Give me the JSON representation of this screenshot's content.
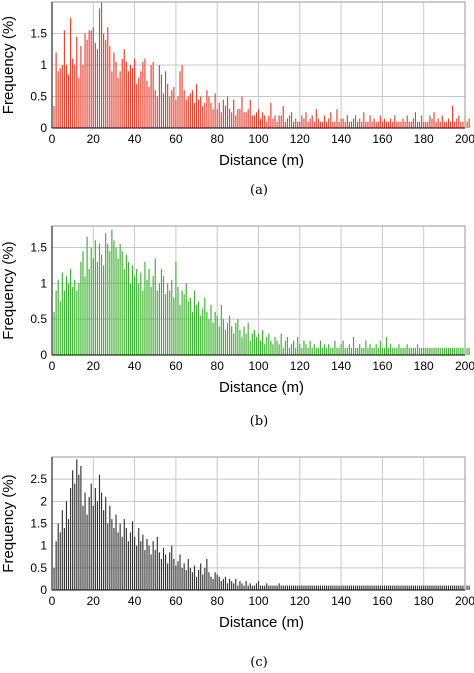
{
  "panels": [
    {
      "caption": "(a)",
      "colors": {
        "bars": "#e8402f"
      },
      "chart_data": {
        "type": "bar",
        "xlabel": "Distance (m)",
        "ylabel": "Frequency (%)",
        "xlim": [
          0,
          200
        ],
        "ylim": [
          0,
          2
        ],
        "xticks": [
          "0",
          "20",
          "40",
          "60",
          "80",
          "100",
          "120",
          "140",
          "160",
          "180",
          "200"
        ],
        "yticks": [
          "0",
          "0.5",
          "1",
          "1.5"
        ],
        "grid": true,
        "bin_width": 1,
        "x_start": 1,
        "values": [
          0.35,
          1.2,
          0.9,
          0.95,
          1.0,
          1.55,
          1.0,
          0.85,
          1.75,
          1.1,
          1.0,
          1.45,
          0.8,
          1.3,
          1.0,
          1.5,
          1.4,
          1.55,
          1.55,
          1.6,
          1.35,
          1.25,
          1.9,
          2.0,
          1.5,
          1.4,
          1.6,
          1.3,
          0.9,
          1.2,
          1.05,
          0.8,
          0.9,
          1.1,
          1.25,
          1.05,
          0.9,
          1.0,
          0.95,
          1.1,
          0.7,
          0.8,
          0.9,
          1.05,
          1.1,
          0.75,
          0.65,
          1.0,
          1.05,
          0.6,
          0.5,
          1.0,
          0.85,
          0.55,
          0.9,
          0.7,
          0.5,
          0.6,
          0.65,
          0.45,
          0.5,
          0.9,
          1.0,
          0.6,
          0.45,
          0.5,
          0.55,
          0.6,
          0.4,
          0.7,
          0.45,
          0.5,
          0.35,
          0.4,
          0.6,
          0.5,
          0.4,
          0.3,
          0.55,
          0.3,
          0.4,
          0.25,
          0.45,
          0.35,
          0.5,
          0.3,
          0.25,
          0.45,
          0.2,
          0.3,
          0.3,
          0.5,
          0.25,
          0.25,
          0.3,
          0.45,
          0.2,
          0.2,
          0.25,
          0.3,
          0.15,
          0.25,
          0.2,
          0.1,
          0.2,
          0.4,
          0.15,
          0.2,
          0.1,
          0.2,
          0.2,
          0.35,
          0.1,
          0.15,
          0.2,
          0.25,
          0.1,
          0.15,
          0.1,
          0.1,
          0.2,
          0.15,
          0.25,
          0.1,
          0.15,
          0.2,
          0.1,
          0.3,
          0.15,
          0.1,
          0.1,
          0.2,
          0.1,
          0.15,
          0.25,
          0.1,
          0.1,
          0.3,
          0.1,
          0.15,
          0.15,
          0.1,
          0.2,
          0.1,
          0.1,
          0.15,
          0.2,
          0.1,
          0.15,
          0.1,
          0.25,
          0.1,
          0.1,
          0.2,
          0.1,
          0.15,
          0.1,
          0.1,
          0.2,
          0.1,
          0.15,
          0.1,
          0.1,
          0.15,
          0.1,
          0.2,
          0.1,
          0.1,
          0.1,
          0.15,
          0.1,
          0.2,
          0.1,
          0.1,
          0.15,
          0.25,
          0.1,
          0.1,
          0.2,
          0.1,
          0.1,
          0.1,
          0.2,
          0.15,
          0.25,
          0.1,
          0.15,
          0.1,
          0.2,
          0.1,
          0.1,
          0.15,
          0.1,
          0.35,
          0.1,
          0.15,
          0.2,
          0.1,
          0.1,
          0.2,
          0.1,
          0.15
        ]
      }
    },
    {
      "caption": "(b)",
      "colors": {
        "bars": "#3cb02f"
      },
      "chart_data": {
        "type": "bar",
        "xlabel": "Distance (m)",
        "ylabel": "Frequency (%)",
        "xlim": [
          0,
          200
        ],
        "ylim": [
          0,
          1.8
        ],
        "xticks": [
          "0",
          "20",
          "40",
          "60",
          "80",
          "100",
          "120",
          "140",
          "160",
          "180",
          "200"
        ],
        "yticks": [
          "0",
          "0.5",
          "1",
          "1.5"
        ],
        "grid": true,
        "bin_width": 1,
        "x_start": 1,
        "values": [
          0.6,
          0.9,
          1.05,
          0.75,
          1.15,
          0.9,
          1.1,
          1.0,
          1.2,
          0.95,
          1.05,
          0.9,
          1.0,
          1.3,
          1.45,
          1.1,
          1.65,
          1.2,
          1.5,
          1.35,
          1.6,
          1.3,
          1.55,
          1.4,
          1.25,
          1.7,
          1.55,
          1.45,
          1.75,
          1.6,
          1.5,
          1.35,
          1.55,
          1.45,
          1.2,
          1.4,
          1.3,
          1.0,
          1.25,
          1.1,
          1.2,
          1.0,
          1.15,
          0.9,
          1.3,
          1.05,
          1.2,
          0.95,
          1.1,
          1.35,
          0.9,
          1.0,
          1.2,
          1.1,
          0.85,
          1.0,
          0.9,
          1.05,
          0.8,
          1.3,
          0.95,
          0.7,
          0.9,
          0.85,
          1.0,
          0.75,
          0.8,
          0.6,
          0.9,
          0.7,
          0.75,
          0.55,
          0.65,
          0.8,
          0.6,
          0.5,
          0.7,
          0.45,
          0.6,
          0.55,
          0.4,
          0.7,
          0.5,
          0.35,
          0.45,
          0.55,
          0.4,
          0.3,
          0.45,
          0.5,
          0.35,
          0.25,
          0.4,
          0.3,
          0.45,
          0.2,
          0.3,
          0.35,
          0.25,
          0.3,
          0.2,
          0.35,
          0.15,
          0.25,
          0.3,
          0.2,
          0.15,
          0.25,
          0.2,
          0.15,
          0.3,
          0.1,
          0.2,
          0.25,
          0.1,
          0.15,
          0.2,
          0.1,
          0.25,
          0.15,
          0.1,
          0.2,
          0.15,
          0.1,
          0.2,
          0.1,
          0.15,
          0.1,
          0.1,
          0.2,
          0.1,
          0.15,
          0.1,
          0.15,
          0.1,
          0.1,
          0.2,
          0.1,
          0.1,
          0.15,
          0.2,
          0.1,
          0.1,
          0.15,
          0.1,
          0.25,
          0.1,
          0.1,
          0.15,
          0.1,
          0.1,
          0.2,
          0.1,
          0.15,
          0.1,
          0.1,
          0.15,
          0.1,
          0.2,
          0.1,
          0.1,
          0.25,
          0.1,
          0.15,
          0.1,
          0.1,
          0.1,
          0.15,
          0.1,
          0.1,
          0.1,
          0.15,
          0.1,
          0.1,
          0.1,
          0.1,
          0.15,
          0.1,
          0.1,
          0.1,
          0.1,
          0.1,
          0.1,
          0.1,
          0.1,
          0.1,
          0.1,
          0.1,
          0.1,
          0.1,
          0.1,
          0.1,
          0.1,
          0.1,
          0.1,
          0.1,
          0.1,
          0.1,
          0.1,
          0.1,
          0.1,
          0.1
        ]
      }
    },
    {
      "caption": "(c)",
      "colors": {
        "bars": "#333333"
      },
      "chart_data": {
        "type": "bar",
        "xlabel": "Distance (m)",
        "ylabel": "Frequency (%)",
        "xlim": [
          0,
          200
        ],
        "ylim": [
          0,
          3
        ],
        "xticks": [
          "0",
          "20",
          "40",
          "60",
          "80",
          "100",
          "120",
          "140",
          "160",
          "180",
          "200"
        ],
        "yticks": [
          "0",
          "0.5",
          "1",
          "1.5",
          "2",
          "2.5"
        ],
        "grid": true,
        "bin_width": 1,
        "x_start": 1,
        "values": [
          0.5,
          1.1,
          1.5,
          1.3,
          1.8,
          1.4,
          2.0,
          1.6,
          2.3,
          2.7,
          2.4,
          2.95,
          2.6,
          2.8,
          1.9,
          2.2,
          1.7,
          2.1,
          2.4,
          1.9,
          2.3,
          2.0,
          2.6,
          2.2,
          1.8,
          2.1,
          1.5,
          1.9,
          1.6,
          1.4,
          1.7,
          1.3,
          1.5,
          1.2,
          1.6,
          1.4,
          1.1,
          1.3,
          1.55,
          1.2,
          1.0,
          1.4,
          1.1,
          1.25,
          0.9,
          1.15,
          1.0,
          0.8,
          1.1,
          0.9,
          1.2,
          0.85,
          0.7,
          0.95,
          0.8,
          0.6,
          0.85,
          1.0,
          0.7,
          0.55,
          0.65,
          0.8,
          0.5,
          0.6,
          0.45,
          0.7,
          0.5,
          0.4,
          0.55,
          0.3,
          0.45,
          0.6,
          0.35,
          0.5,
          0.7,
          0.4,
          0.3,
          0.25,
          0.4,
          0.35,
          0.3,
          0.2,
          0.25,
          0.3,
          0.15,
          0.25,
          0.2,
          0.15,
          0.25,
          0.1,
          0.2,
          0.15,
          0.1,
          0.2,
          0.1,
          0.15,
          0.1,
          0.1,
          0.15,
          0.2,
          0.1,
          0.1,
          0.1,
          0.15,
          0.1,
          0.1,
          0.1,
          0.1,
          0.1,
          0.15,
          0.1,
          0.1,
          0.1,
          0.1,
          0.1,
          0.1,
          0.1,
          0.1,
          0.1,
          0.1,
          0.1,
          0.1,
          0.1,
          0.1,
          0.1,
          0.1,
          0.1,
          0.1,
          0.1,
          0.1,
          0.1,
          0.1,
          0.1,
          0.1,
          0.1,
          0.1,
          0.1,
          0.1,
          0.1,
          0.1,
          0.1,
          0.1,
          0.1,
          0.1,
          0.1,
          0.1,
          0.1,
          0.1,
          0.1,
          0.1,
          0.1,
          0.1,
          0.1,
          0.1,
          0.1,
          0.1,
          0.1,
          0.1,
          0.1,
          0.1,
          0.1,
          0.1,
          0.1,
          0.1,
          0.1,
          0.1,
          0.1,
          0.1,
          0.1,
          0.1,
          0.1,
          0.1,
          0.1,
          0.1,
          0.1,
          0.1,
          0.1,
          0.1,
          0.1,
          0.1,
          0.1,
          0.1,
          0.1,
          0.1,
          0.1,
          0.1,
          0.1,
          0.1,
          0.1,
          0.1,
          0.1,
          0.1,
          0.1,
          0.1,
          0.1,
          0.1,
          0.1,
          0.1,
          0.1,
          0.1,
          0.1,
          0.1
        ]
      }
    }
  ]
}
